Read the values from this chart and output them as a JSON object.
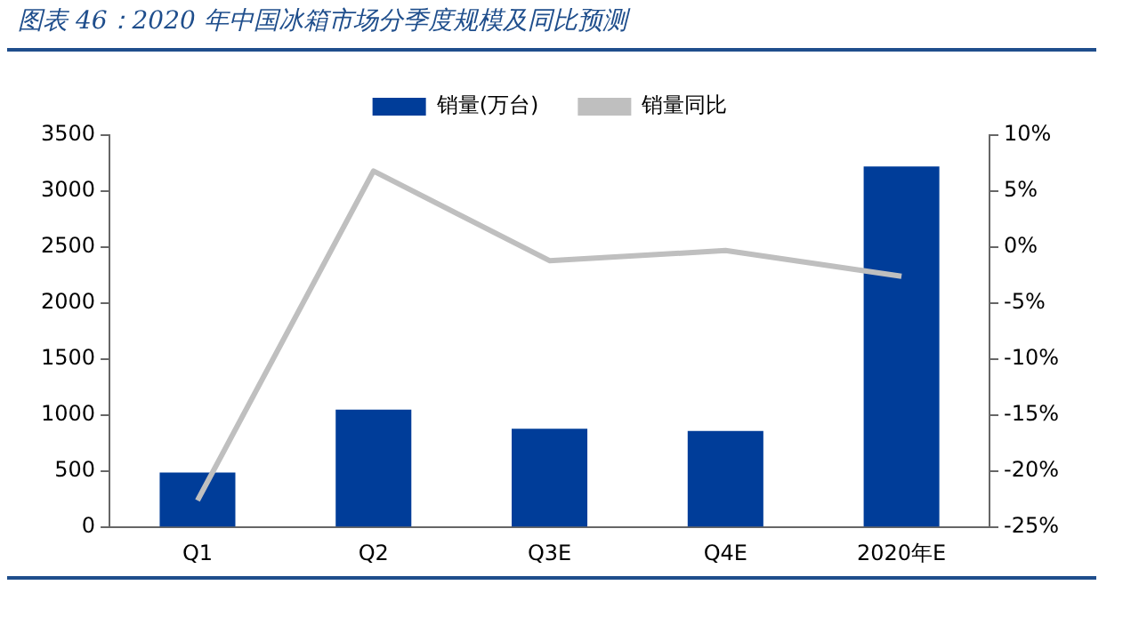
{
  "chart_data": {
    "type": "bar",
    "title": "图表 46：2020 年中国冰箱市场分季度规模及同比预测",
    "categories": [
      "Q1",
      "Q2",
      "Q3E",
      "Q4E",
      "2020年E"
    ],
    "series": [
      {
        "name": "销量(万台)",
        "color": "#003d99",
        "values": [
          490,
          1050,
          880,
          860,
          3220
        ]
      },
      {
        "name": "销量同比",
        "type": "line",
        "axis": "y2",
        "color": "#bfbfbf",
        "values": [
          -22.6,
          6.8,
          -1.2,
          -0.3,
          -2.6
        ]
      }
    ],
    "ylim": [
      0,
      3500
    ],
    "yticks": [
      0,
      500,
      1000,
      1500,
      2000,
      2500,
      3000,
      3500
    ],
    "y2lim": [
      -25,
      10
    ],
    "y2ticks": [
      {
        "value": -25,
        "label": "-25%"
      },
      {
        "value": -20,
        "label": "-20%"
      },
      {
        "value": -15,
        "label": "-15%"
      },
      {
        "value": -10,
        "label": "-10%"
      },
      {
        "value": -5,
        "label": "-5%"
      },
      {
        "value": 0,
        "label": "0%"
      },
      {
        "value": 5,
        "label": "5%"
      },
      {
        "value": 10,
        "label": "10%"
      }
    ],
    "grid": false,
    "legend": "top",
    "marker": "none",
    "line_style": "solid"
  }
}
